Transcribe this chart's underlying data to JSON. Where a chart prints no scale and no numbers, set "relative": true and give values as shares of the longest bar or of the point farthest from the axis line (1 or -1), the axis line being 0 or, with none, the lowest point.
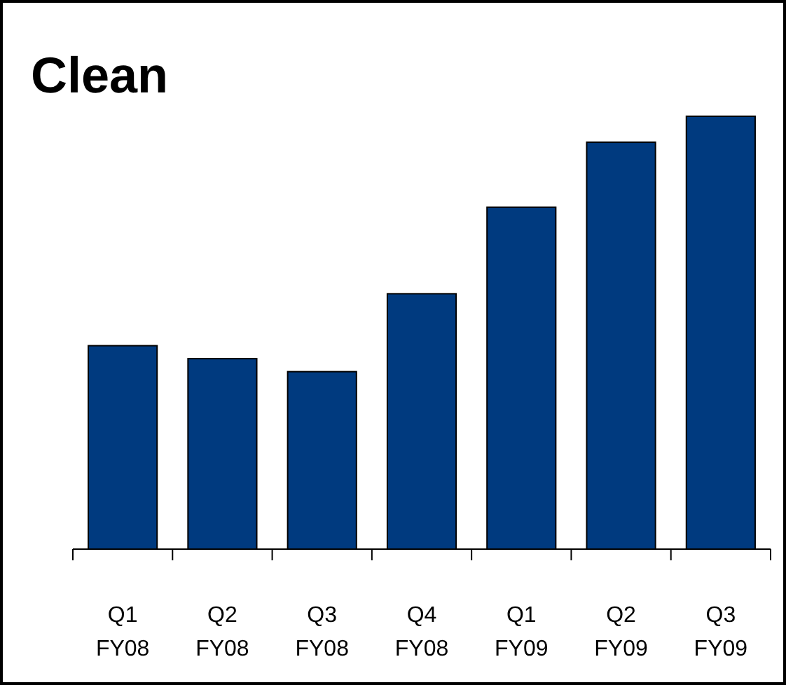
{
  "chart_data": {
    "type": "bar",
    "title": "Clean",
    "relative": true,
    "categories": [
      "Q1\nFY08",
      "Q2\nFY08",
      "Q3\nFY08",
      "Q4\nFY08",
      "Q1\nFY09",
      "Q2\nFY09",
      "Q3\nFY09"
    ],
    "values": [
      0.47,
      0.44,
      0.41,
      0.59,
      0.79,
      0.94,
      1
    ],
    "color": "#003a7f"
  }
}
